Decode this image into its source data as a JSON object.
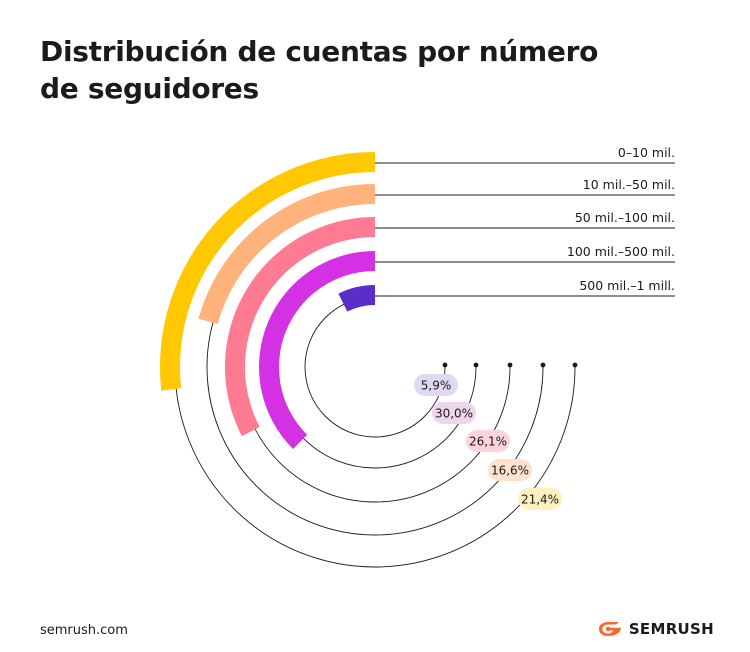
{
  "title_line1": "Distribución de cuentas por número",
  "title_line2": "de seguidores",
  "footer": {
    "url": "semrush.com",
    "brand": "SEMRUSH",
    "brand_icon": "semrush-flame-icon",
    "brand_color": "#ff642d"
  },
  "chart_data": {
    "type": "radial-bar",
    "title": "Distribución de cuentas por número de seguidores",
    "unit": "%",
    "series": [
      {
        "label": "0–10 mil.",
        "value": 21.4,
        "value_label": "21,4%",
        "color": "#ffc800",
        "pill_color": "#fff1bd"
      },
      {
        "label": "10 mil.–50 mil.",
        "value": 16.6,
        "value_label": "16,6%",
        "color": "#ffb27a",
        "pill_color": "#fde3cf"
      },
      {
        "label": "50 mil.–100 mil.",
        "value": 26.1,
        "value_label": "26,1%",
        "color": "#ff7b91",
        "pill_color": "#fbd5da"
      },
      {
        "label": "100 mil.–500 mil.",
        "value": 30.0,
        "value_label": "30,0%",
        "color": "#d531e4",
        "pill_color": "#eed5ec"
      },
      {
        "label": "500 mil.–1 mill.",
        "value": 5.9,
        "value_label": "5,9%",
        "color": "#5b2ec9",
        "pill_color": "#e1d9f2"
      }
    ]
  }
}
